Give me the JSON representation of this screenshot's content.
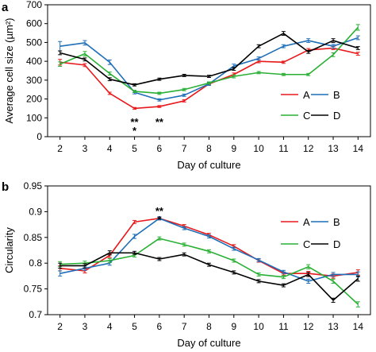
{
  "chart_data": [
    {
      "panel": "a",
      "type": "line",
      "title": "",
      "xlabel": "Day of culture",
      "ylabel": "Average cell size (µm²)",
      "x": [
        2,
        3,
        4,
        5,
        6,
        7,
        8,
        9,
        10,
        11,
        12,
        13,
        14
      ],
      "xlim": [
        1.5,
        14.5
      ],
      "ylim": [
        0,
        700
      ],
      "yticks": [
        "0",
        "100",
        "200",
        "300",
        "400",
        "500",
        "600",
        "700"
      ],
      "grid": false,
      "legend": "right",
      "series": [
        {
          "name": "A",
          "color": "#e8191b",
          "values": [
            395,
            380,
            230,
            150,
            160,
            190,
            280,
            330,
            400,
            395,
            460,
            470,
            440
          ],
          "errors": [
            15,
            8,
            6,
            5,
            5,
            6,
            6,
            8,
            8,
            6,
            8,
            8,
            8
          ]
        },
        {
          "name": "B",
          "color": "#1f6fb8",
          "values": [
            480,
            498,
            395,
            235,
            195,
            220,
            280,
            375,
            415,
            480,
            510,
            480,
            525
          ],
          "errors": [
            25,
            12,
            12,
            8,
            6,
            6,
            8,
            10,
            8,
            8,
            10,
            10,
            10
          ]
        },
        {
          "name": "C",
          "color": "#2ab035",
          "values": [
            385,
            440,
            335,
            240,
            230,
            250,
            285,
            320,
            340,
            330,
            330,
            435,
            580
          ],
          "errors": [
            12,
            12,
            8,
            6,
            6,
            6,
            6,
            8,
            6,
            6,
            6,
            10,
            15
          ]
        },
        {
          "name": "D",
          "color": "#000000",
          "values": [
            445,
            410,
            305,
            275,
            305,
            325,
            320,
            360,
            480,
            548,
            450,
            510,
            470
          ],
          "errors": [
            10,
            8,
            8,
            6,
            6,
            6,
            6,
            8,
            8,
            10,
            8,
            10,
            8
          ]
        }
      ],
      "annotations": [
        {
          "x": 5,
          "lines": [
            "**",
            "*"
          ]
        },
        {
          "x": 6,
          "lines": [
            "**"
          ]
        }
      ]
    },
    {
      "panel": "b",
      "type": "line",
      "title": "",
      "xlabel": "Day of culture",
      "ylabel": "Circularity",
      "x": [
        2,
        3,
        4,
        5,
        6,
        7,
        8,
        9,
        10,
        11,
        12,
        13,
        14
      ],
      "xlim": [
        1.5,
        14.5
      ],
      "ylim": [
        0.7,
        0.95
      ],
      "yticks": [
        "0.7",
        "0.75",
        "0.8",
        "0.85",
        "0.9",
        "0.95"
      ],
      "grid": false,
      "legend": "right",
      "series": [
        {
          "name": "A",
          "color": "#e8191b",
          "values": [
            0.79,
            0.785,
            0.815,
            0.88,
            0.887,
            0.872,
            0.855,
            0.833,
            0.805,
            0.78,
            0.78,
            0.775,
            0.782
          ],
          "errors": [
            0.005,
            0.004,
            0.004,
            0.003,
            0.003,
            0.003,
            0.003,
            0.003,
            0.003,
            0.003,
            0.004,
            0.004,
            0.005
          ]
        },
        {
          "name": "B",
          "color": "#1f6fb8",
          "values": [
            0.78,
            0.79,
            0.8,
            0.852,
            0.887,
            0.868,
            0.852,
            0.828,
            0.806,
            0.783,
            0.765,
            0.778,
            0.778
          ],
          "errors": [
            0.005,
            0.004,
            0.004,
            0.004,
            0.003,
            0.003,
            0.003,
            0.003,
            0.003,
            0.003,
            0.004,
            0.004,
            0.005
          ]
        },
        {
          "name": "C",
          "color": "#2ab035",
          "values": [
            0.798,
            0.8,
            0.805,
            0.815,
            0.848,
            0.836,
            0.823,
            0.805,
            0.778,
            0.773,
            0.793,
            0.765,
            0.72
          ],
          "errors": [
            0.005,
            0.004,
            0.004,
            0.003,
            0.003,
            0.003,
            0.003,
            0.003,
            0.003,
            0.003,
            0.004,
            0.004,
            0.005
          ]
        },
        {
          "name": "D",
          "color": "#000000",
          "values": [
            0.795,
            0.795,
            0.82,
            0.82,
            0.808,
            0.817,
            0.797,
            0.782,
            0.765,
            0.757,
            0.778,
            0.728,
            0.77
          ],
          "errors": [
            0.005,
            0.004,
            0.004,
            0.003,
            0.003,
            0.003,
            0.003,
            0.003,
            0.003,
            0.003,
            0.004,
            0.004,
            0.005
          ]
        }
      ],
      "annotations": [
        {
          "x": 6,
          "lines": [
            "**",
            "*"
          ]
        }
      ]
    }
  ]
}
